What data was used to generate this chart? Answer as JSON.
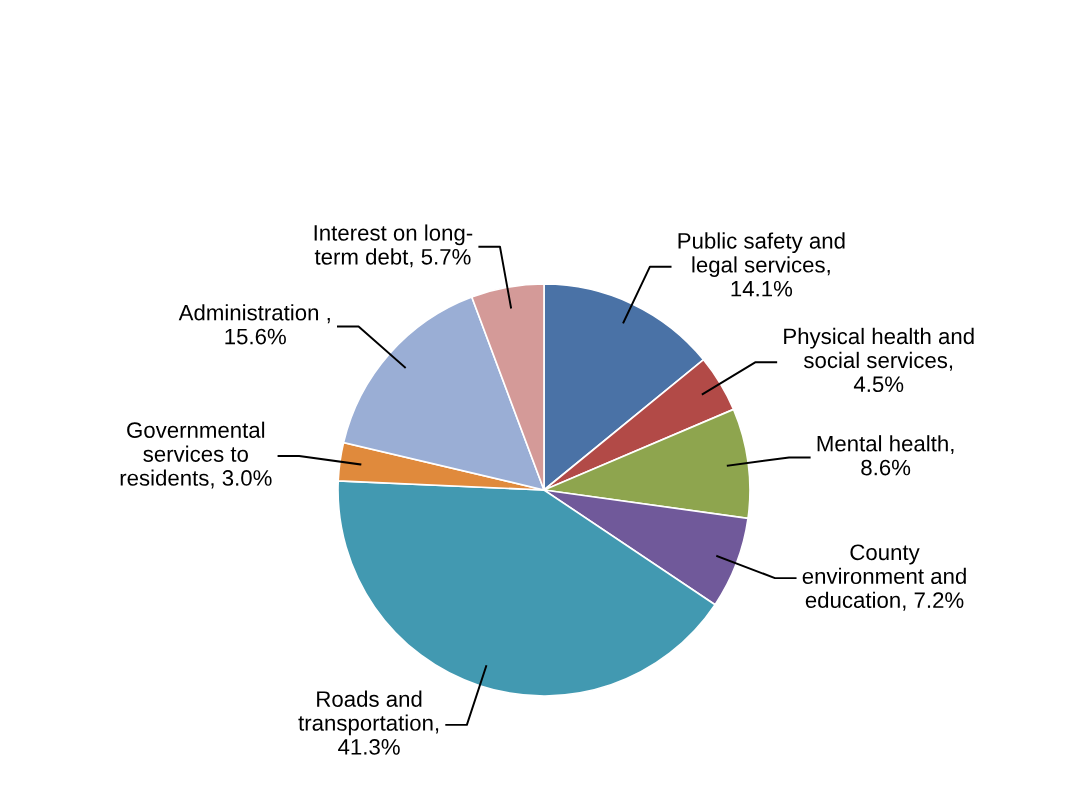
{
  "chart_data": {
    "type": "pie",
    "categories": [
      "Public safety and\nlegal services,\n14.1%",
      "Physical health and\nsocial services,\n4.5%",
      "Mental health,\n8.6%",
      "County\nenvironment and\neducation, 7.2%",
      "Roads and\ntransportation,\n41.3%",
      "Governmental\nservices to\nresidents, 3.0%",
      "Administration ,\n15.6%",
      "Interest on long-\nterm debt, 5.7%"
    ],
    "values": [
      14.1,
      4.5,
      8.6,
      7.2,
      41.3,
      3.0,
      15.6,
      5.7
    ],
    "colors": [
      "#4a72a6",
      "#b24a47",
      "#8ea54e",
      "#70599a",
      "#4299b1",
      "#e08a3c",
      "#9aaed5",
      "#d49a98"
    ]
  }
}
